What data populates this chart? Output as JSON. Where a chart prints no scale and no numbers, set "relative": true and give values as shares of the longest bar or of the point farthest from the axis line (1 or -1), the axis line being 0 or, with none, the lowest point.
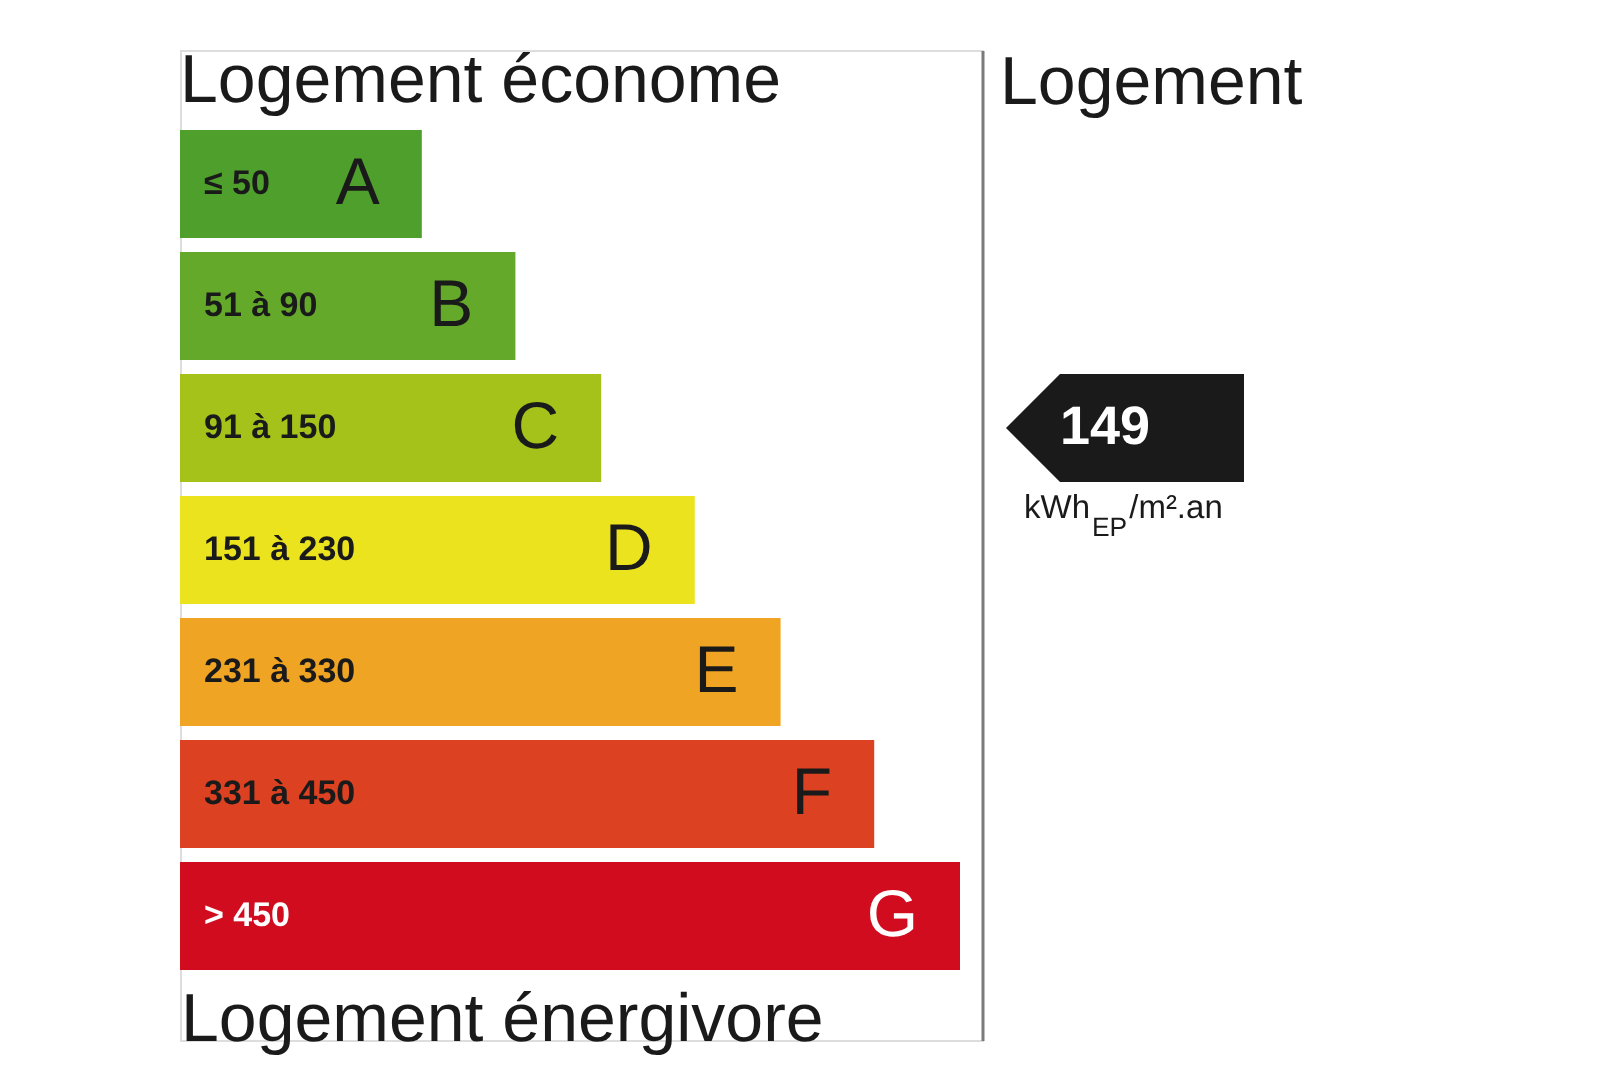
{
  "chart_data": {
    "type": "bar",
    "orientation": "horizontal",
    "relative": true,
    "title": "Logement économe",
    "xlabel": "Logement énergivore",
    "categories": [
      "≤ 50",
      "51 à 90",
      "91 à 150",
      "151 à 230",
      "231 à 330",
      "331 à 450",
      "> 450"
    ],
    "y2_categories": [
      "A",
      "B",
      "C",
      "D",
      "E",
      "F",
      "G"
    ],
    "values": [
      0.31,
      0.43,
      0.54,
      0.66,
      0.77,
      0.89,
      1
    ],
    "colors": [
      "#4f9f2c",
      "#64a92a",
      "#a4c21a",
      "#ece31f",
      "#f0a423",
      "#dc4121",
      "#d20c1f"
    ],
    "annotations": [
      "Logement",
      "149",
      "kWh$_{EP}$/m².an"
    ]
  }
}
